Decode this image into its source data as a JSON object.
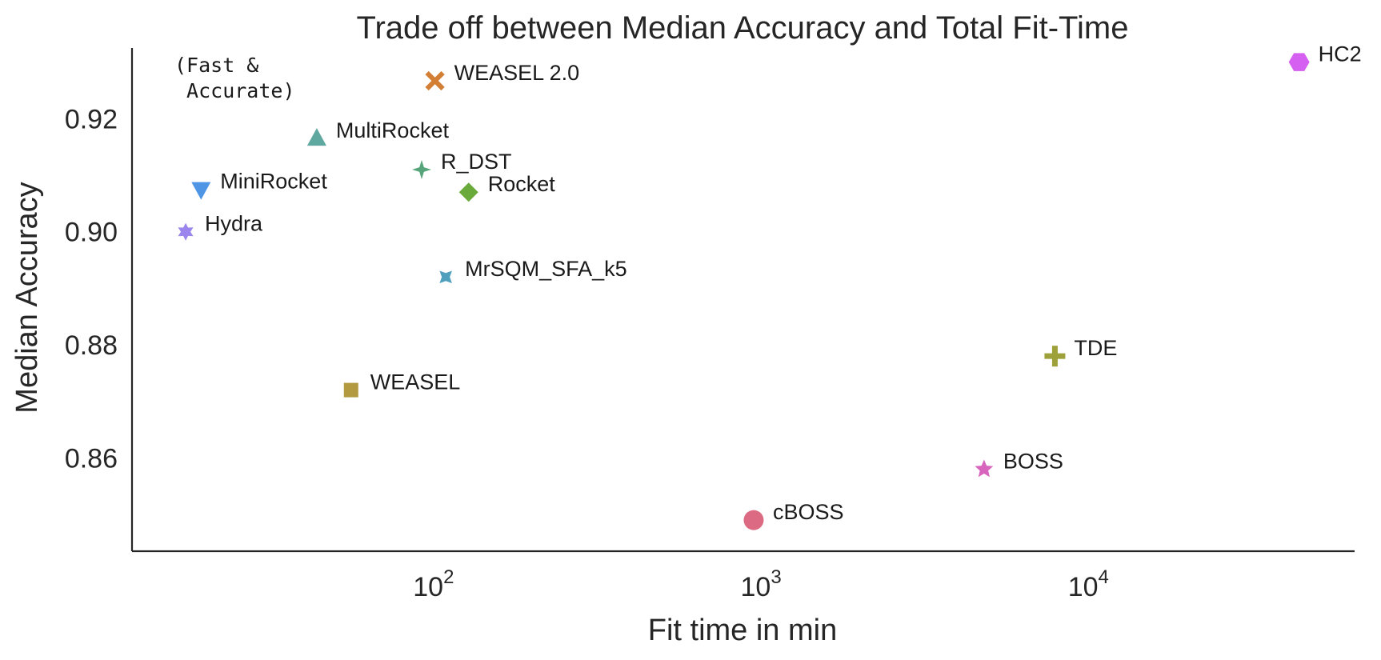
{
  "chart_data": {
    "type": "scatter",
    "title": "Trade off between Median Accuracy and Total Fit-Time",
    "xlabel": "Fit time in min",
    "ylabel": "Median Accuracy",
    "xscale": "log",
    "xlim": [
      12,
      65000
    ],
    "ylim": [
      0.8435,
      0.9325
    ],
    "grid": false,
    "legend": "none",
    "x_ticks": [
      {
        "base": "10",
        "exp": "2",
        "value": 100
      },
      {
        "base": "10",
        "exp": "3",
        "value": 1000
      },
      {
        "base": "10",
        "exp": "4",
        "value": 10000
      }
    ],
    "y_ticks": [
      {
        "label": "0.86",
        "value": 0.86
      },
      {
        "label": "0.88",
        "value": 0.88
      },
      {
        "label": "0.90",
        "value": 0.9
      },
      {
        "label": "0.92",
        "value": 0.92
      }
    ],
    "annotation": {
      "lines": [
        "(Fast &",
        " Accurate)"
      ]
    },
    "points": [
      {
        "label": "HC2",
        "x": 44000,
        "y": 0.93,
        "marker": "hexagon",
        "color": "#d55ff0"
      },
      {
        "label": "WEASEL 2.0",
        "x": 101,
        "y": 0.9267,
        "marker": "x",
        "color": "#d27f35"
      },
      {
        "label": "MultiRocket",
        "x": 44,
        "y": 0.9165,
        "marker": "triangle-up",
        "color": "#5fa8a0"
      },
      {
        "label": "R_DST",
        "x": 92,
        "y": 0.911,
        "marker": "star4",
        "color": "#55a47a"
      },
      {
        "label": "Rocket",
        "x": 128,
        "y": 0.907,
        "marker": "diamond",
        "color": "#6aaa3b"
      },
      {
        "label": "MiniRocket",
        "x": 19.5,
        "y": 0.9075,
        "marker": "triangle-down",
        "color": "#4f95e6"
      },
      {
        "label": "Hydra",
        "x": 17.5,
        "y": 0.9,
        "marker": "star6",
        "color": "#9b86ee"
      },
      {
        "label": "MrSQM_SFA_k5",
        "x": 109,
        "y": 0.892,
        "marker": "star4-concave",
        "color": "#4fa0bd"
      },
      {
        "label": "TDE",
        "x": 7900,
        "y": 0.878,
        "marker": "plus",
        "color": "#9ea03a"
      },
      {
        "label": "WEASEL",
        "x": 56,
        "y": 0.872,
        "marker": "square",
        "color": "#b39a40"
      },
      {
        "label": "BOSS",
        "x": 4800,
        "y": 0.858,
        "marker": "star5",
        "color": "#d865bd"
      },
      {
        "label": "cBOSS",
        "x": 950,
        "y": 0.849,
        "marker": "circle",
        "color": "#dc6a82"
      }
    ]
  }
}
